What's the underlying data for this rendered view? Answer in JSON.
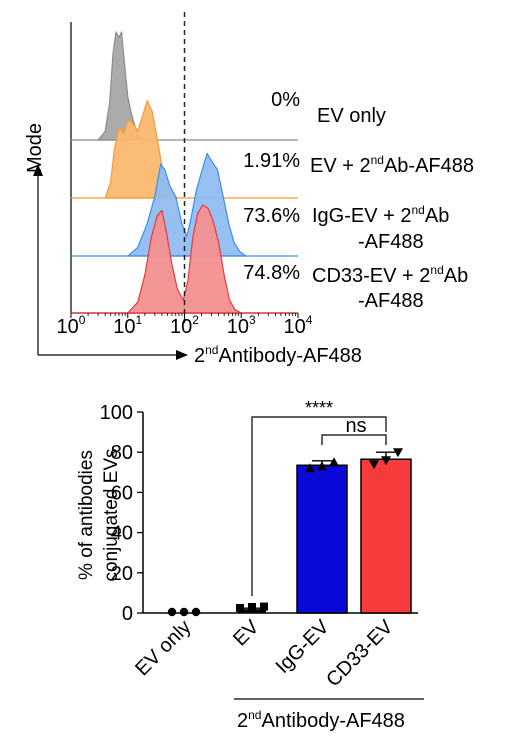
{
  "chart_data": [
    {
      "type": "area",
      "xlabel": "2ndAntibody-AF488",
      "ylabel": "Mode",
      "x_scale": "log",
      "xlim": [
        1,
        10000
      ],
      "x_ticks": [
        1,
        10,
        100,
        1000,
        10000
      ],
      "gate_x": 100,
      "series": [
        {
          "name": "EV only",
          "label_parts": [
            "EV only"
          ],
          "label_superscripts": [],
          "percent": "0%",
          "percent_value": 0,
          "color": "#a6a6a6",
          "stroke": "#8c8c8c",
          "x": [
            3,
            4,
            4.8,
            5.5,
            6.2,
            7.0,
            7.8,
            8.8,
            10,
            11.5,
            13,
            15,
            18
          ],
          "y": [
            0,
            0.08,
            0.35,
            0.8,
            1.0,
            0.95,
            1.0,
            0.7,
            0.4,
            0.25,
            0.15,
            0.05,
            0
          ]
        },
        {
          "name": "EV + 2ndAb-AF488",
          "label_parts": [
            "EV + 2",
            "nd",
            "Ab-AF488"
          ],
          "label_superscripts": [
            1
          ],
          "percent": "1.91%",
          "percent_value": 1.91,
          "color": "#fbb871",
          "stroke": "#f39a37",
          "x": [
            4,
            5,
            5.8,
            7,
            8.5,
            10,
            12,
            15,
            18,
            22,
            27,
            33,
            40,
            50,
            62,
            75
          ],
          "y": [
            0,
            0.15,
            0.45,
            0.65,
            0.6,
            0.72,
            0.7,
            0.62,
            0.75,
            0.9,
            0.8,
            0.55,
            0.3,
            0.12,
            0.04,
            0
          ]
        },
        {
          "name": "IgG-EV + 2ndAb-AF488",
          "label_parts": [
            "IgG-EV + 2",
            "nd",
            "Ab",
            "-AF488"
          ],
          "label_superscripts": [
            1
          ],
          "percent": "73.6%",
          "percent_value": 73.6,
          "color": "#8fbdf0",
          "stroke": "#3d8fe6",
          "x": [
            10,
            15,
            22,
            30,
            38,
            45,
            55,
            70,
            90,
            110,
            130,
            160,
            200,
            250,
            300,
            380,
            480,
            600,
            750,
            950,
            1200
          ],
          "y": [
            0,
            0.08,
            0.3,
            0.55,
            0.85,
            0.8,
            0.65,
            0.55,
            0.3,
            0.18,
            0.35,
            0.6,
            0.78,
            0.95,
            0.88,
            0.8,
            0.55,
            0.3,
            0.12,
            0.04,
            0
          ]
        },
        {
          "name": "CD33-EV + 2ndAb-AF488",
          "label_parts": [
            "CD33-EV + 2",
            "nd",
            "Ab",
            "-AF488"
          ],
          "label_superscripts": [
            1
          ],
          "percent": "74.8%",
          "percent_value": 74.8,
          "color": "#f49090",
          "stroke": "#e23c3c",
          "x": [
            10,
            15,
            20,
            26,
            33,
            40,
            48,
            60,
            75,
            95,
            115,
            140,
            170,
            210,
            260,
            320,
            400,
            500,
            620,
            780,
            1000
          ],
          "y": [
            0,
            0.1,
            0.35,
            0.7,
            0.9,
            0.95,
            0.75,
            0.45,
            0.22,
            0.12,
            0.3,
            0.7,
            0.92,
            1.0,
            0.97,
            0.85,
            0.65,
            0.35,
            0.12,
            0.03,
            0
          ]
        }
      ]
    },
    {
      "type": "bar",
      "ylabel": [
        "% of antibodies",
        "conjugated EVs"
      ],
      "ylim": [
        0,
        100
      ],
      "yticks": [
        0,
        20,
        40,
        60,
        80,
        100
      ],
      "categories": [
        "EV only",
        "EV",
        "IgG-EV",
        "CD33-EV"
      ],
      "values": [
        0,
        1.9,
        73.5,
        76.5
      ],
      "errors": [
        0,
        0.5,
        2.2,
        3.5
      ],
      "bar_colors": [
        "none",
        "none",
        "#0a0ad8",
        "#f53b3b"
      ],
      "points": [
        [
          0,
          0,
          0
        ],
        [
          1.5,
          2.0,
          2.2
        ],
        [
          72,
          73,
          75
        ],
        [
          74,
          76,
          80
        ]
      ],
      "point_shapes": [
        "circle",
        "square",
        "triangle-up",
        "triangle-down"
      ],
      "group_label_parts": [
        "2",
        "nd",
        "Antibody-AF488"
      ],
      "significance": [
        {
          "from": 1,
          "to": 3,
          "label": "****"
        },
        {
          "from": 2,
          "to": 3,
          "label": "ns"
        }
      ]
    }
  ],
  "icons": {
    "axis_arrow": "arrow-icon"
  }
}
